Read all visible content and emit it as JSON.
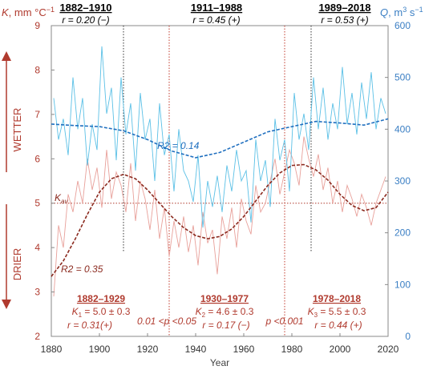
{
  "chart_data": {
    "type": "line",
    "xlabel": "Year",
    "xlim": [
      1880,
      2020
    ],
    "x_ticks": [
      "1880",
      "1900",
      "1920",
      "1940",
      "1960",
      "1980",
      "2000",
      "2020"
    ],
    "left_axis": {
      "label_html": [
        "K",
        ", mm °C",
        "−1"
      ],
      "ylim": [
        2,
        9
      ],
      "ticks": [
        "2",
        "3",
        "4",
        "5",
        "6",
        "7",
        "8",
        "9"
      ],
      "color": "#b03a2e"
    },
    "right_axis": {
      "label_html": [
        "Q",
        ", m",
        "3",
        " s",
        "−1"
      ],
      "ylim": [
        0,
        600
      ],
      "ticks": [
        "0",
        "100",
        "200",
        "300",
        "400",
        "500",
        "600"
      ],
      "color": "#3b7fc4"
    },
    "side_labels": {
      "wetter": "WETTER",
      "drier": "DRIER"
    },
    "kav_label": [
      "K",
      "av"
    ],
    "kav_value": 5.0,
    "top_periods": [
      {
        "years": "1882–1910",
        "r": "r = 0.20 (−)"
      },
      {
        "years": "1911–1988",
        "r": "r = 0.45 (+)"
      },
      {
        "years": "1989–2018",
        "r": "r = 0.53 (+)"
      }
    ],
    "bottom_periods": [
      {
        "years": "1882–1929",
        "k_sym": "K",
        "k_sub": "1",
        "k_val": " = 5.0 ± 0.3",
        "r": "r = 0.31(+)"
      },
      {
        "years": "1930–1977",
        "k_sym": "K",
        "k_sub": "2",
        "k_val": " = 4.6 ± 0.3",
        "r": "r = 0.17 (−)"
      },
      {
        "years": "1978–2018",
        "k_sym": "K",
        "k_sub": "3",
        "k_val": " = 5.5 ± 0.3",
        "r": "r = 0.44 (+)"
      }
    ],
    "pvalues": [
      "0.01 <p <0.05",
      "p <0.001"
    ],
    "r2_q": "R2 = 0.14",
    "r2_k": "R2 = 0.35",
    "q_divider_years": [
      1910,
      1988
    ],
    "k_divider_years": [
      1929,
      1977
    ],
    "series": [
      {
        "name": "Q",
        "axis": "right",
        "color": "#5bc0e6",
        "x": [
          1881,
          1883,
          1885,
          1887,
          1889,
          1891,
          1893,
          1895,
          1897,
          1899,
          1901,
          1903,
          1905,
          1907,
          1909,
          1911,
          1913,
          1915,
          1917,
          1919,
          1921,
          1923,
          1925,
          1927,
          1929,
          1931,
          1933,
          1935,
          1937,
          1939,
          1941,
          1943,
          1945,
          1947,
          1949,
          1951,
          1953,
          1955,
          1957,
          1959,
          1961,
          1963,
          1965,
          1967,
          1969,
          1971,
          1973,
          1975,
          1977,
          1979,
          1981,
          1983,
          1985,
          1987,
          1989,
          1991,
          1993,
          1995,
          1997,
          1999,
          2001,
          2003,
          2005,
          2007,
          2009,
          2011,
          2013,
          2015,
          2017,
          2019
        ],
        "values": [
          460,
          380,
          420,
          350,
          500,
          400,
          460,
          330,
          410,
          360,
          560,
          430,
          480,
          340,
          500,
          390,
          450,
          320,
          470,
          380,
          420,
          300,
          450,
          350,
          390,
          280,
          400,
          320,
          300,
          260,
          350,
          210,
          300,
          250,
          310,
          240,
          330,
          280,
          360,
          300,
          320,
          220,
          380,
          300,
          340,
          250,
          420,
          340,
          380,
          280,
          470,
          380,
          430,
          360,
          500,
          400,
          480,
          380,
          450,
          400,
          520,
          410,
          470,
          390,
          490,
          420,
          510,
          400,
          460,
          430
        ]
      },
      {
        "name": "K",
        "axis": "left",
        "color": "#e8a09a",
        "x": [
          1881,
          1883,
          1885,
          1887,
          1889,
          1891,
          1893,
          1895,
          1897,
          1899,
          1901,
          1903,
          1905,
          1907,
          1909,
          1911,
          1913,
          1915,
          1917,
          1919,
          1921,
          1923,
          1925,
          1927,
          1929,
          1931,
          1933,
          1935,
          1937,
          1939,
          1941,
          1943,
          1945,
          1947,
          1949,
          1951,
          1953,
          1955,
          1957,
          1959,
          1961,
          1963,
          1965,
          1967,
          1969,
          1971,
          1973,
          1975,
          1977,
          1979,
          1981,
          1983,
          1985,
          1987,
          1989,
          1991,
          1993,
          1995,
          1997,
          1999,
          2001,
          2003,
          2005,
          2007,
          2009,
          2011,
          2013,
          2015,
          2017,
          2019
        ],
        "values": [
          2.9,
          4.5,
          4.0,
          5.2,
          4.8,
          5.5,
          5.0,
          6.0,
          5.3,
          5.8,
          4.9,
          6.2,
          5.1,
          5.7,
          5.4,
          4.8,
          5.9,
          4.6,
          5.5,
          5.1,
          4.4,
          5.3,
          4.2,
          4.9,
          3.8,
          4.6,
          4.0,
          4.7,
          3.9,
          4.5,
          3.6,
          4.8,
          4.1,
          4.4,
          3.4,
          4.7,
          4.2,
          4.9,
          4.0,
          5.1,
          4.6,
          4.3,
          5.4,
          4.8,
          5.0,
          5.5,
          6.0,
          5.2,
          5.7,
          6.2,
          5.9,
          5.4,
          6.5,
          6.0,
          5.6,
          6.1,
          5.3,
          5.8,
          5.0,
          5.5,
          4.8,
          5.4,
          5.1,
          4.7,
          5.2,
          4.9,
          4.5,
          5.0,
          5.3,
          5.6
        ]
      },
      {
        "name": "Q trend",
        "axis": "right",
        "color": "#1f6fbf",
        "x": [
          1880,
          1890,
          1900,
          1910,
          1920,
          1930,
          1940,
          1950,
          1960,
          1970,
          1980,
          1990,
          2000,
          2010,
          2020
        ],
        "values": [
          410,
          407,
          405,
          397,
          380,
          358,
          345,
          355,
          375,
          395,
          405,
          415,
          412,
          408,
          420
        ]
      },
      {
        "name": "K trend",
        "axis": "left",
        "color": "#8b2a1f",
        "x": [
          1880,
          1885,
          1890,
          1895,
          1900,
          1905,
          1910,
          1915,
          1920,
          1925,
          1930,
          1935,
          1940,
          1945,
          1950,
          1955,
          1960,
          1965,
          1970,
          1975,
          1980,
          1985,
          1990,
          1995,
          2000,
          2005,
          2010,
          2015,
          2020
        ],
        "values": [
          3.35,
          3.7,
          4.2,
          4.75,
          5.25,
          5.55,
          5.65,
          5.55,
          5.3,
          5.0,
          4.7,
          4.45,
          4.27,
          4.2,
          4.25,
          4.42,
          4.7,
          5.05,
          5.4,
          5.68,
          5.85,
          5.87,
          5.75,
          5.52,
          5.2,
          4.95,
          4.83,
          4.9,
          5.25
        ]
      }
    ]
  }
}
